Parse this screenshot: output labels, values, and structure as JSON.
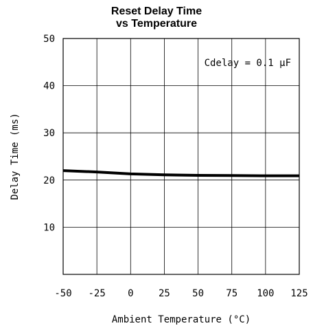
{
  "chart_data": {
    "type": "line",
    "title": "Reset Delay Time",
    "subtitle": "vs Temperature",
    "xlabel": "Ambient Temperature (°C)",
    "ylabel": "Delay Time (ms)",
    "annotation": "Cdelay = 0.1 μF",
    "xlim": [
      -50,
      125
    ],
    "ylim": [
      0,
      50
    ],
    "xticks": [
      "-50",
      "-25",
      "0",
      "25",
      "50",
      "75",
      "100",
      "125"
    ],
    "yticks": [
      "10",
      "20",
      "30",
      "40",
      "50"
    ],
    "grid": true,
    "series": [
      {
        "x": [
          -50,
          -25,
          0,
          25,
          50,
          75,
          100,
          125
        ],
        "values": [
          22.0,
          21.7,
          21.3,
          21.1,
          21.0,
          20.95,
          20.9,
          20.9
        ]
      }
    ]
  }
}
